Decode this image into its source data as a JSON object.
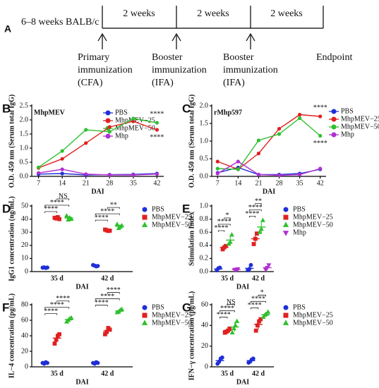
{
  "timeline": {
    "panel": "A",
    "start_label": "6–8 weeks BALB/c",
    "intervals": [
      "2 weeks",
      "2 weeks",
      "2 weeks"
    ],
    "events": [
      [
        "Primary",
        "immunization",
        "(CFA)"
      ],
      [
        "Booster",
        "immunization",
        "(IFA)"
      ],
      [
        "Booster",
        "immunization",
        "(IFA)"
      ],
      [
        "Endpoint"
      ]
    ]
  },
  "chart_data": [
    {
      "type": "line",
      "panel": "B",
      "title": "MhpMEV",
      "y_label": "O.D. 450 nm (Serum total IgG)",
      "x_label": "DAI",
      "x": [
        7,
        14,
        21,
        28,
        35,
        42
      ],
      "xlim": [
        5,
        44
      ],
      "xticks": [
        7,
        14,
        21,
        28,
        35,
        42
      ],
      "ylim": [
        0,
        2.5
      ],
      "yticks": [
        {
          "value": 0,
          "label": "0.0"
        },
        0.5,
        {
          "value": 1,
          "label": "1.0"
        },
        1.5,
        {
          "value": 2,
          "label": "2.0"
        },
        2.5
      ],
      "legend": "upper right",
      "series": [
        {
          "name": "PBS",
          "color": "#1f2fd6",
          "values": [
            0.08,
            0.1,
            0.05,
            0.06,
            0.07,
            0.1
          ]
        },
        {
          "name": "MhpMEV−25",
          "color": "#e02020",
          "values": [
            0.3,
            0.62,
            1.18,
            1.75,
            1.95,
            1.65
          ]
        },
        {
          "name": "MhpMEV−50",
          "color": "#2ec02e",
          "values": [
            0.32,
            0.9,
            1.65,
            1.58,
            2.05,
            1.9
          ]
        },
        {
          "name": "Mhp",
          "color": "#b030d0",
          "values": [
            0.12,
            0.25,
            0.08,
            0.05,
            0.05,
            0.08
          ]
        }
      ],
      "annotations": [
        "****",
        "****"
      ]
    },
    {
      "type": "line",
      "panel": "C",
      "title": "rMhp597",
      "y_label": "O.D. 450 nm (Serum total IgG)",
      "x_label": "DAI",
      "x": [
        7,
        14,
        21,
        28,
        35,
        42
      ],
      "xlim": [
        5,
        44
      ],
      "xticks": [
        7,
        14,
        21,
        28,
        35,
        42
      ],
      "ylim": [
        0,
        2
      ],
      "yticks": [
        {
          "value": 0,
          "label": "0.0"
        },
        0.5,
        {
          "value": 1,
          "label": "1.0"
        },
        1.5,
        {
          "value": 2,
          "label": "2.0"
        }
      ],
      "legend": "right",
      "series": [
        {
          "name": "PBS",
          "color": "#1f2fd6",
          "values": [
            0.1,
            0.25,
            0.05,
            0.05,
            0.08,
            0.2
          ]
        },
        {
          "name": "MhpMEV−25",
          "color": "#e02020",
          "values": [
            0.42,
            0.2,
            0.65,
            1.35,
            1.75,
            1.7
          ]
        },
        {
          "name": "MhpMEV−50",
          "color": "#2ec02e",
          "values": [
            0.22,
            0.2,
            1.02,
            1.2,
            1.65,
            1.15
          ]
        },
        {
          "name": "Mhp",
          "color": "#b030d0",
          "values": [
            0.08,
            0.42,
            0.05,
            0.03,
            0.05,
            0.22
          ]
        }
      ],
      "annotations": [
        "****",
        "****"
      ]
    },
    {
      "type": "dotplot",
      "panel": "D",
      "y_label": "IgG1 concentration (ng/mL)",
      "x_label": "DAI",
      "categories": [
        "35 d",
        "42 d"
      ],
      "ylim": [
        0,
        50
      ],
      "yticks": [
        0,
        10,
        20,
        30,
        40,
        50
      ],
      "legend": "right",
      "series": [
        {
          "name": "PBS",
          "color": "#1f2fd6",
          "marker": "circle",
          "values": [
            3,
            4.5
          ],
          "errors": [
            0.3,
            0.4
          ],
          "points": [
            [
              3,
              3.2,
              2.8,
              3.1
            ],
            [
              5,
              4.5,
              4,
              4.3
            ]
          ]
        },
        {
          "name": "MhpMEV−25",
          "color": "#e02020",
          "marker": "square",
          "values": [
            40.8,
            31.4
          ],
          "errors": [
            0.6,
            0.4
          ],
          "points": [
            [
              41,
              40.5,
              41.5,
              40
            ],
            [
              32,
              31.5,
              31,
              31.2
            ]
          ]
        },
        {
          "name": "MhpMEV−50",
          "color": "#2ec02e",
          "marker": "triangle-up",
          "values": [
            40.8,
            34.5
          ],
          "errors": [
            1.5,
            1.3
          ],
          "points": [
            [
              42.5,
              39.5,
              41,
              40
            ],
            [
              36,
              33,
              34,
              35
            ]
          ]
        }
      ],
      "significance": [
        [
          "****",
          "****",
          "NS"
        ],
        [
          "****",
          "****",
          "**"
        ]
      ]
    },
    {
      "type": "dotplot",
      "panel": "E",
      "y_label": "Stimulation Index",
      "x_label": "DAI",
      "categories": [
        "35 d",
        "42 d"
      ],
      "ylim": [
        0,
        1
      ],
      "yticks": [
        {
          "value": 0,
          "label": "0.0"
        },
        0.2,
        0.4,
        0.6,
        0.8,
        {
          "value": 1,
          "label": "1.0"
        }
      ],
      "legend": "right",
      "series": [
        {
          "name": "PBS",
          "color": "#1f2fd6",
          "marker": "circle",
          "values": [
            0.04,
            0.05
          ],
          "errors": [
            0.02,
            0.04
          ],
          "points": [
            [
              0.02,
              0.05,
              0.06
            ],
            [
              0.02,
              0.04,
              0.1
            ]
          ]
        },
        {
          "name": "MhpMEV−25",
          "color": "#e02020",
          "marker": "square",
          "values": [
            0.37,
            0.5
          ],
          "errors": [
            0.03,
            0.08
          ],
          "points": [
            [
              0.34,
              0.37,
              0.39
            ],
            [
              0.42,
              0.5,
              0.58
            ]
          ]
        },
        {
          "name": "MhpMEV−50",
          "color": "#2ec02e",
          "marker": "triangle-up",
          "values": [
            0.48,
            0.68
          ],
          "errors": [
            0.07,
            0.09
          ],
          "points": [
            [
              0.42,
              0.45,
              0.56
            ],
            [
              0.6,
              0.65,
              0.78
            ]
          ]
        },
        {
          "name": "Mhp",
          "color": "#b030d0",
          "marker": "triangle-down",
          "values": [
            0.03,
            0.06
          ],
          "errors": [
            0.01,
            0.03
          ],
          "points": [
            [
              0.03,
              0.03,
              0.04
            ],
            [
              0.03,
              0.06,
              0.1
            ]
          ]
        }
      ],
      "significance": [
        [
          "****",
          "****",
          "*"
        ],
        [
          "****",
          "****",
          "**"
        ]
      ]
    },
    {
      "type": "dotplot",
      "panel": "F",
      "y_label": "IL−4 concentration (pg/mL)",
      "x_label": "DAI",
      "categories": [
        "35 d",
        "42 d"
      ],
      "ylim": [
        0,
        80
      ],
      "yticks": [
        0,
        20,
        40,
        60,
        80
      ],
      "legend": "right",
      "series": [
        {
          "name": "PBS",
          "color": "#1f2fd6",
          "marker": "circle",
          "values": [
            5,
            5
          ],
          "errors": [
            0.8,
            0.8
          ],
          "points": [
            [
              5,
              4,
              6,
              5
            ],
            [
              5,
              4,
              6,
              5
            ]
          ]
        },
        {
          "name": "MhpMEV−25",
          "color": "#e02020",
          "marker": "square",
          "values": [
            37,
            46
          ],
          "errors": [
            5,
            3.5
          ],
          "points": [
            [
              30,
              35,
              40,
              42
            ],
            [
              42,
              45,
              50,
              48
            ]
          ]
        },
        {
          "name": "MhpMEV−50",
          "color": "#2ec02e",
          "marker": "triangle-up",
          "values": [
            61,
            72
          ],
          "errors": [
            2,
            1.8
          ],
          "points": [
            [
              58,
              60,
              62,
              63
            ],
            [
              70,
              71,
              73,
              74
            ]
          ]
        }
      ],
      "significance": [
        [
          "****",
          "****",
          "****"
        ],
        [
          "****",
          "****",
          "****"
        ]
      ]
    },
    {
      "type": "dotplot",
      "panel": "G",
      "y_label": "IFN−γ concentration (pg/mL)",
      "x_label": "DAI",
      "categories": [
        "35 d",
        "42 d"
      ],
      "ylim": [
        0,
        60
      ],
      "yticks": [
        0,
        20,
        40,
        60
      ],
      "legend": "right",
      "series": [
        {
          "name": "PBS",
          "color": "#1f2fd6",
          "marker": "circle",
          "values": [
            6,
            6
          ],
          "errors": [
            2.8,
            1.8
          ],
          "points": [
            [
              3,
              5,
              8,
              9
            ],
            [
              4,
              5,
              7,
              8
            ]
          ]
        },
        {
          "name": "MhpMEV−25",
          "color": "#e02020",
          "marker": "square",
          "values": [
            35,
            41
          ],
          "errors": [
            1.7,
            4.8
          ],
          "points": [
            [
              33,
              34,
              35,
              37
            ],
            [
              35,
              40,
              44,
              46
            ]
          ]
        },
        {
          "name": "MhpMEV−50",
          "color": "#2ec02e",
          "marker": "triangle-up",
          "values": [
            38.5,
            50.5
          ],
          "errors": [
            4.6,
            2.1
          ],
          "points": [
            [
              33,
              37,
              40,
              44
            ],
            [
              48,
              50,
              51,
              53
            ]
          ]
        }
      ],
      "significance": [
        [
          "****",
          "****",
          "NS"
        ],
        [
          "****",
          "****",
          "*"
        ]
      ]
    }
  ]
}
